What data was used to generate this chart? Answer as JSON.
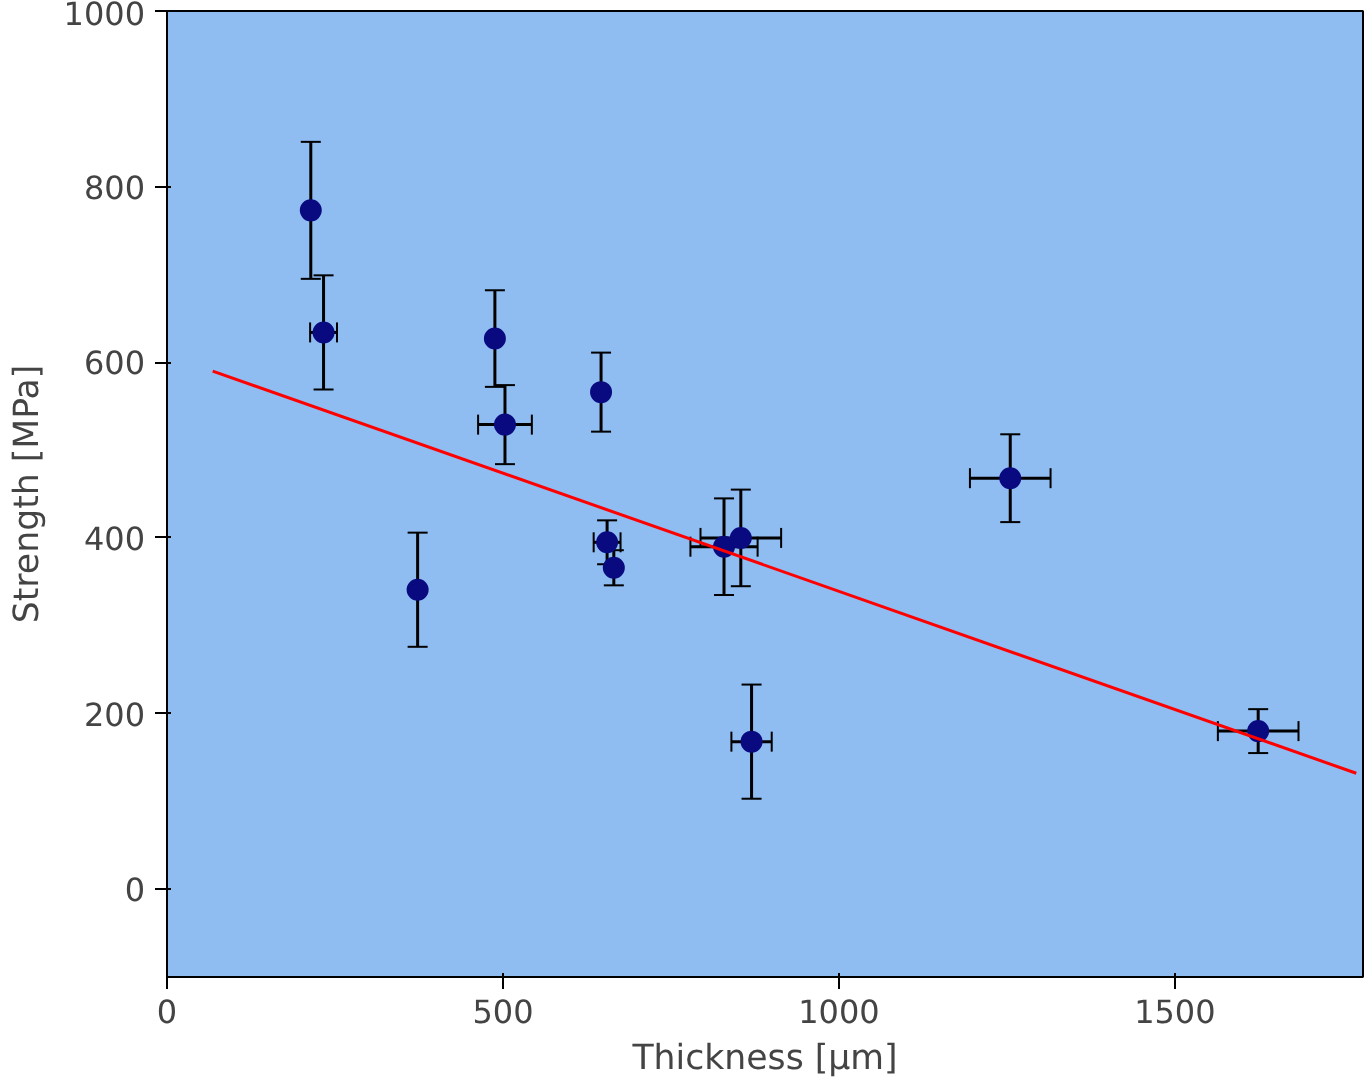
{
  "chart_data": {
    "type": "scatter",
    "xlabel": "Thickness [µm]",
    "ylabel": "Strength [MPa]",
    "xlim": [
      0,
      1780
    ],
    "ylim": [
      -100,
      1000
    ],
    "xticks": [
      0,
      500,
      1000,
      1500
    ],
    "yticks": [
      0,
      200,
      400,
      600,
      800,
      1000
    ],
    "grid": false,
    "series": [
      {
        "marker": "circle",
        "color": "#0a0a80",
        "x": [
          214,
          233,
          373,
          488,
          503,
          646,
          655,
          665,
          829,
          854,
          870,
          1255,
          1624
        ],
        "values": [
          773,
          634,
          341,
          627,
          529,
          566,
          395,
          366,
          390,
          400,
          168,
          468,
          180
        ],
        "errors": [
          78,
          65,
          65,
          55,
          45,
          45,
          25,
          20,
          55,
          55,
          65,
          50,
          25
        ],
        "xerrors": [
          null,
          20,
          null,
          null,
          40,
          null,
          20,
          null,
          50,
          60,
          30,
          60,
          60
        ]
      },
      {
        "type": "line",
        "marker": "none",
        "color": "#ff0000",
        "x": [
          68,
          1770
        ],
        "values": [
          590,
          132
        ]
      }
    ]
  }
}
